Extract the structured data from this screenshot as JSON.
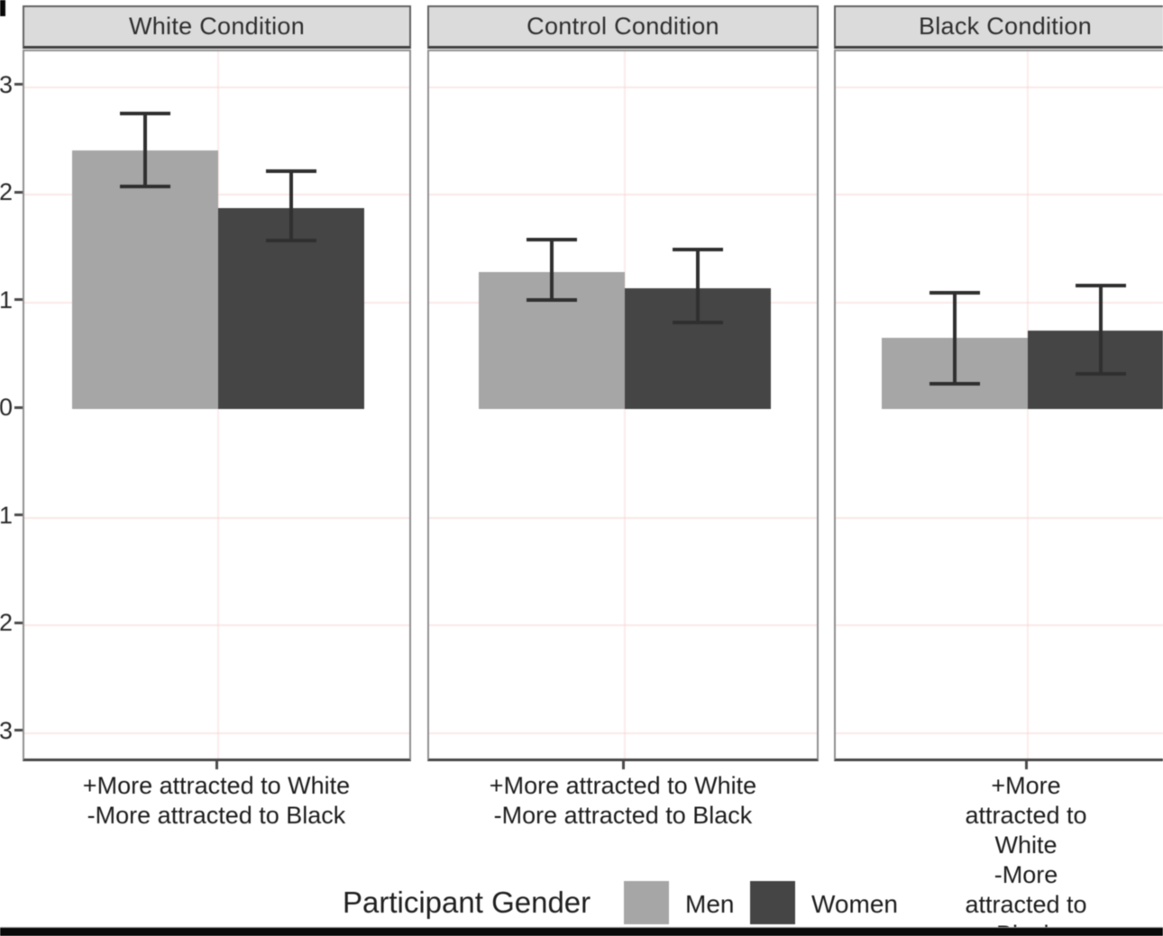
{
  "chart_data": {
    "type": "bar",
    "title": "",
    "y_ticks": [
      {
        "label": "3",
        "value": 3
      },
      {
        "label": "2",
        "value": 2
      },
      {
        "label": "1",
        "value": 1
      },
      {
        "label": "0",
        "value": 0
      },
      {
        "label": "-1",
        "value": -1
      },
      {
        "label": "-2",
        "value": -2
      },
      {
        "label": "-3",
        "value": -3
      }
    ],
    "ylim": [
      -3.3,
      3.3
    ],
    "grid": "faint",
    "colors": {
      "men": "#a6a6a6",
      "women": "#454545"
    },
    "facets": [
      {
        "title": "White Condition",
        "x_label_line1": "+More attracted to White",
        "x_label_line2": "-More attracted to Black",
        "bars": [
          {
            "series": "Men",
            "value": 2.4,
            "err_low": 2.05,
            "err_high": 2.76
          },
          {
            "series": "Women",
            "value": 1.87,
            "err_low": 1.55,
            "err_high": 2.23
          }
        ]
      },
      {
        "title": "Control Condition",
        "x_label_line1": "+More attracted to White",
        "x_label_line2": "-More attracted to Black",
        "bars": [
          {
            "series": "Men",
            "value": 1.27,
            "err_low": 1.0,
            "err_high": 1.59
          },
          {
            "series": "Women",
            "value": 1.12,
            "err_low": 0.79,
            "err_high": 1.5
          }
        ]
      },
      {
        "title": "Black Condition",
        "x_label_line1": "+More attracted to White",
        "x_label_line2": "-More attracted to Black",
        "bars": [
          {
            "series": "Men",
            "value": 0.66,
            "err_low": 0.22,
            "err_high": 1.1
          },
          {
            "series": "Women",
            "value": 0.73,
            "err_low": 0.31,
            "err_high": 1.16
          }
        ]
      }
    ],
    "legend": {
      "title": "Participant Gender",
      "entries": [
        {
          "label": "Men",
          "color": "#a6a6a6"
        },
        {
          "label": "Women",
          "color": "#454545"
        }
      ],
      "position": "bottom"
    }
  }
}
